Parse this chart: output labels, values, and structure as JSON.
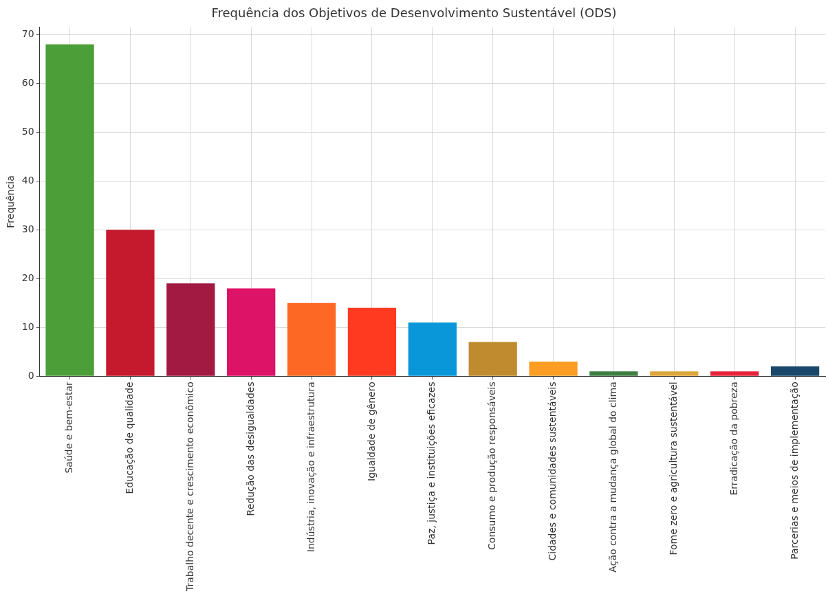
{
  "chart_data": {
    "type": "bar",
    "title": "Frequência dos Objetivos de Desenvolvimento Sustentável (ODS)",
    "ylabel": "Frequência",
    "categories": [
      "Saúde e bem-estar",
      "Educação de qualidade",
      "Trabalho decente e crescimento econômico",
      "Redução das desigualdades",
      "Indústria, inovação e infraestrutura",
      "Igualdade de gênero",
      "Paz, justiça e instituições eficazes",
      "Consumo e produção responsáveis",
      "Cidades e comunidades sustentáveis",
      "Ação contra a mudança global do clima",
      "Fome zero e agricultura sustentável",
      "Erradicação da pobreza",
      "Parcerias e meios de implementação"
    ],
    "values": [
      68,
      30,
      19,
      18,
      15,
      14,
      11,
      7,
      3,
      1,
      1,
      1,
      2
    ],
    "colors": [
      "#4c9f38",
      "#c5192d",
      "#a21942",
      "#dd1367",
      "#fd6925",
      "#ff3a21",
      "#0a97d9",
      "#bf8b2e",
      "#fd9d24",
      "#3f7e44",
      "#dda63a",
      "#e5243b",
      "#19486a"
    ],
    "ylim": [
      0,
      71.5
    ],
    "yticks": [
      0,
      10,
      20,
      30,
      40,
      50,
      60,
      70
    ],
    "grid": true,
    "legend": false
  }
}
